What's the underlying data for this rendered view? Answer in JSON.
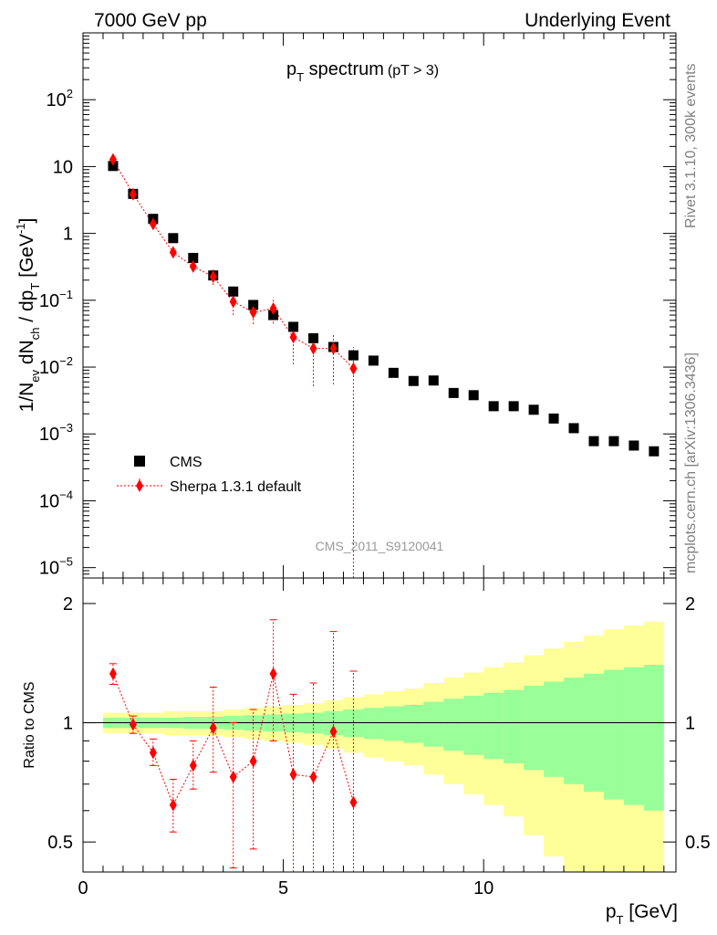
{
  "header": {
    "left": "7000 GeV pp",
    "right": "Underlying Event"
  },
  "side_text": {
    "top": "Rivet 3.1.10,  300k events",
    "bottom": "mcplots.cern.ch [arXiv:1306.3436]"
  },
  "colors": {
    "cms": "#000000",
    "sherpa": "#ff0000",
    "band_inner": "#99ff99",
    "band_outer": "#ffff99"
  },
  "chart_data": [
    {
      "type": "scatter",
      "title": "p_T spectrum (pT > 3)",
      "title_main": "p",
      "title_sub": "T",
      "title_rest": " spectrum",
      "title_cut": "(pT >  3)",
      "ylabel": "1/N_ev dN_ch / dp_T [GeV^-1]",
      "ylabel_parts": [
        "1/N",
        "ev",
        " dN",
        "ch",
        " / dp",
        "T",
        " [GeV",
        "-1",
        "]"
      ],
      "yscale": "log",
      "xlim": [
        0,
        14.8
      ],
      "ylim": [
        7e-06,
        1000
      ],
      "yticks": [
        {
          "v": 100,
          "label": "10",
          "exp": "2"
        },
        {
          "v": 10,
          "label": "10",
          "exp": ""
        },
        {
          "v": 1,
          "label": "1",
          "exp": ""
        },
        {
          "v": 0.1,
          "label": "10",
          "exp": "−1"
        },
        {
          "v": 0.01,
          "label": "10",
          "exp": "−2"
        },
        {
          "v": 0.001,
          "label": "10",
          "exp": "−3"
        },
        {
          "v": 0.0001,
          "label": "10",
          "exp": "−4"
        },
        {
          "v": 1e-05,
          "label": "10",
          "exp": "−5"
        }
      ],
      "watermark": "CMS_2011_S9120041",
      "legend_position": "lower-left",
      "series": [
        {
          "name": "CMS",
          "marker": "square",
          "x": [
            0.75,
            1.25,
            1.75,
            2.25,
            2.75,
            3.25,
            3.75,
            4.25,
            4.75,
            5.25,
            5.75,
            6.25,
            6.75,
            7.25,
            7.75,
            8.25,
            8.75,
            9.25,
            9.75,
            10.25,
            10.75,
            11.25,
            11.75,
            12.25,
            12.75,
            13.25,
            13.75,
            14.25
          ],
          "y": [
            10.2,
            3.9,
            1.65,
            0.85,
            0.43,
            0.235,
            0.135,
            0.085,
            0.06,
            0.04,
            0.027,
            0.02,
            0.015,
            0.0125,
            0.0082,
            0.0062,
            0.0063,
            0.0041,
            0.0038,
            0.0026,
            0.0026,
            0.0023,
            0.0017,
            0.00122,
            0.00078,
            0.00078,
            0.00067,
            0.00055
          ]
        },
        {
          "name": "Sherpa 1.3.1 default",
          "marker": "diamond",
          "x": [
            0.75,
            1.25,
            1.75,
            2.25,
            2.75,
            3.25,
            3.75,
            4.25,
            4.75,
            5.25,
            5.75,
            6.25,
            6.75
          ],
          "y": [
            12.8,
            3.85,
            1.38,
            0.52,
            0.32,
            0.225,
            0.095,
            0.066,
            0.075,
            0.028,
            0.019,
            0.019,
            0.0095
          ],
          "ylo": [
            12.0,
            3.6,
            1.2,
            0.44,
            0.27,
            0.17,
            0.06,
            0.044,
            0.045,
            0.011,
            0.0052,
            0.0055,
            5e-06
          ],
          "yhi": [
            13.6,
            4.1,
            1.55,
            0.62,
            0.38,
            0.29,
            0.13,
            0.09,
            0.11,
            0.045,
            0.033,
            0.032,
            0.02
          ]
        }
      ]
    },
    {
      "type": "line",
      "ylabel": "Ratio to CMS",
      "xlabel": "p_T [GeV]",
      "xlabel_main": "p",
      "xlabel_sub": "T",
      "xlabel_rest": " [GeV]",
      "yscale": "log",
      "xlim": [
        0,
        14.8
      ],
      "ylim": [
        0.42,
        2.32
      ],
      "xticks": [
        0,
        5,
        10
      ],
      "yticks": [
        0.5,
        1,
        2
      ],
      "reference_line": 1,
      "bands": {
        "x_edges": [
          0.5,
          1.0,
          1.5,
          2.0,
          2.5,
          3.0,
          3.5,
          4.0,
          4.5,
          5.0,
          5.5,
          6.0,
          6.5,
          7.0,
          7.5,
          8.0,
          8.5,
          9.0,
          9.5,
          10.0,
          10.5,
          11.0,
          11.5,
          12.0,
          12.5,
          13.0,
          13.5,
          14.0,
          14.5
        ],
        "inner": [
          0.03,
          0.03,
          0.03,
          0.03,
          0.035,
          0.035,
          0.04,
          0.045,
          0.05,
          0.055,
          0.06,
          0.07,
          0.08,
          0.09,
          0.1,
          0.11,
          0.13,
          0.15,
          0.17,
          0.19,
          0.21,
          0.24,
          0.27,
          0.3,
          0.33,
          0.36,
          0.38,
          0.4
        ],
        "outer": [
          0.06,
          0.06,
          0.06,
          0.07,
          0.07,
          0.07,
          0.08,
          0.09,
          0.1,
          0.11,
          0.12,
          0.14,
          0.16,
          0.18,
          0.2,
          0.22,
          0.26,
          0.3,
          0.34,
          0.38,
          0.42,
          0.48,
          0.54,
          0.6,
          0.66,
          0.72,
          0.76,
          0.8
        ]
      },
      "series": [
        {
          "name": "Sherpa 1.3.1 default",
          "x": [
            0.75,
            1.25,
            1.75,
            2.25,
            2.75,
            3.25,
            3.75,
            4.25,
            4.75,
            5.25,
            5.75,
            6.25,
            6.75
          ],
          "y": [
            1.33,
            0.99,
            0.84,
            0.62,
            0.78,
            0.97,
            0.73,
            0.8,
            1.33,
            0.74,
            0.73,
            0.95,
            0.63
          ],
          "ylo": [
            1.25,
            0.94,
            0.78,
            0.53,
            0.68,
            0.75,
            0.43,
            0.48,
            0.9,
            0.3,
            0.2,
            0.28,
            0.0
          ],
          "yhi": [
            1.41,
            1.04,
            0.91,
            0.72,
            0.9,
            1.23,
            1.0,
            1.08,
            1.82,
            1.18,
            1.26,
            1.7,
            1.35
          ]
        }
      ]
    }
  ]
}
